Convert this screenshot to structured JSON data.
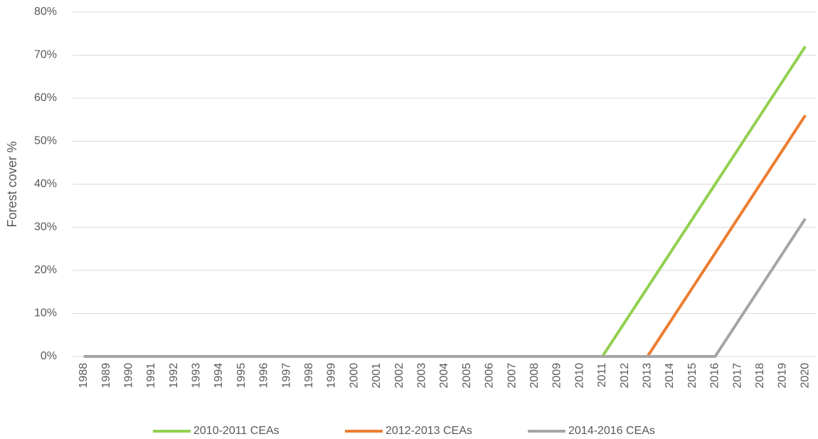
{
  "chart_data": {
    "type": "line",
    "y_label": "Forest cover %",
    "categories": [
      "1988",
      "1989",
      "1990",
      "1991",
      "1992",
      "1993",
      "1994",
      "1995",
      "1996",
      "1997",
      "1998",
      "1999",
      "2000",
      "2001",
      "2002",
      "2003",
      "2004",
      "2005",
      "2006",
      "2007",
      "2008",
      "2009",
      "2010",
      "2011",
      "2012",
      "2013",
      "2014",
      "2015",
      "2016",
      "2017",
      "2018",
      "2019",
      "2020"
    ],
    "series": [
      {
        "name": "2010-2011 CEAs",
        "color": "#92d050",
        "values": [
          0,
          0,
          0,
          0,
          0,
          0,
          0,
          0,
          0,
          0,
          0,
          0,
          0,
          0,
          0,
          0,
          0,
          0,
          0,
          0,
          0,
          0,
          0,
          0,
          8,
          16,
          24,
          32,
          40,
          48,
          56,
          64,
          72
        ]
      },
      {
        "name": "2012-2013 CEAs",
        "color": "#ed7d31",
        "values": [
          0,
          0,
          0,
          0,
          0,
          0,
          0,
          0,
          0,
          0,
          0,
          0,
          0,
          0,
          0,
          0,
          0,
          0,
          0,
          0,
          0,
          0,
          0,
          0,
          0,
          0,
          8,
          16,
          24,
          32,
          40,
          48,
          56
        ]
      },
      {
        "name": "2014-2016 CEAs",
        "color": "#a5a5a5",
        "values": [
          0,
          0,
          0,
          0,
          0,
          0,
          0,
          0,
          0,
          0,
          0,
          0,
          0,
          0,
          0,
          0,
          0,
          0,
          0,
          0,
          0,
          0,
          0,
          0,
          0,
          0,
          0,
          0,
          0,
          8,
          16,
          24,
          32
        ]
      }
    ],
    "ylim": [
      0,
      80
    ],
    "yticks": [
      {
        "value": 0,
        "label": "0%"
      },
      {
        "value": 10,
        "label": "10%"
      },
      {
        "value": 20,
        "label": "20%"
      },
      {
        "value": 30,
        "label": "30%"
      },
      {
        "value": 40,
        "label": "40%"
      },
      {
        "value": 50,
        "label": "50%"
      },
      {
        "value": 60,
        "label": "60%"
      },
      {
        "value": 70,
        "label": "70%"
      },
      {
        "value": 80,
        "label": "80%"
      }
    ],
    "grid": true,
    "legend": "bottom"
  }
}
